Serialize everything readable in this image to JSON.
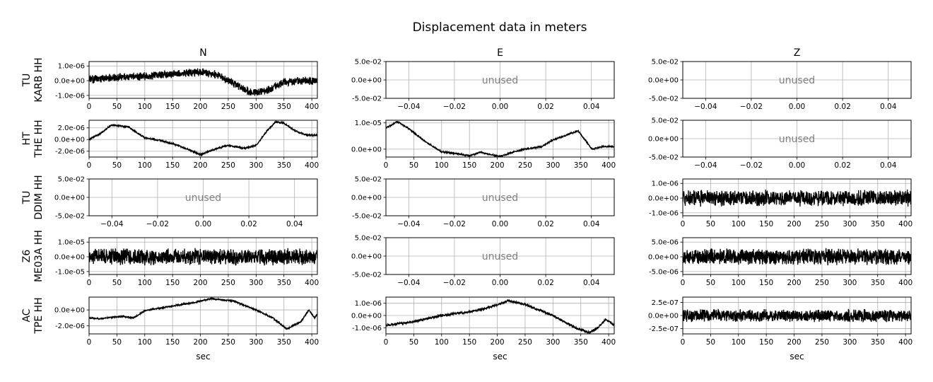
{
  "chart_data": {
    "type": "line",
    "title": "Displacement data in meters",
    "column_titles": [
      "N",
      "E",
      "Z"
    ],
    "xlabel": "sec",
    "unused_label": "unused",
    "line_color": "#000000",
    "grid": true,
    "rows": [
      {
        "label_line1": "TU",
        "label_line2": "KARB HH",
        "panels": [
          {
            "used": true,
            "xlim": [
              0,
              410
            ],
            "ylim": [
              -1.2e-06,
              1.3e-06
            ],
            "yticks": [
              -1e-06,
              0,
              1e-06
            ],
            "ytick_labels": [
              "-1.0e-06",
              "0.0e+00",
              "1.0e-06"
            ],
            "anchors": [
              [
                0,
                5e-08
              ],
              [
                50,
                2.5e-07
              ],
              [
                100,
                3e-07
              ],
              [
                150,
                4.5e-07
              ],
              [
                200,
                6e-07
              ],
              [
                230,
                4e-07
              ],
              [
                260,
                -2e-07
              ],
              [
                290,
                -8e-07
              ],
              [
                320,
                -7e-07
              ],
              [
                350,
                -1e-07
              ],
              [
                410,
                0
              ]
            ],
            "noise": 3e-07,
            "seed": 11
          },
          {
            "used": false,
            "xlim": [
              -0.05,
              0.05
            ],
            "ylim": [
              -0.05,
              0.05
            ],
            "yticks": [
              -0.05,
              0,
              0.05
            ],
            "ytick_labels": [
              "-5.0e-02",
              "0.0e+00",
              "5.0e-02"
            ]
          },
          {
            "used": false,
            "xlim": [
              -0.05,
              0.05
            ],
            "ylim": [
              -0.05,
              0.05
            ],
            "yticks": [
              -0.05,
              0,
              0.05
            ],
            "ytick_labels": [
              "-5.0e-02",
              "0.0e+00",
              "5.0e-02"
            ]
          }
        ]
      },
      {
        "label_line1": "HT",
        "label_line2": "THE HH",
        "panels": [
          {
            "used": true,
            "xlim": [
              0,
              410
            ],
            "ylim": [
              -3e-06,
              3.3e-06
            ],
            "yticks": [
              -2e-06,
              0,
              2e-06
            ],
            "ytick_labels": [
              "-2.0e-06",
              "0.0e+00",
              "2.0e-06"
            ],
            "anchors": [
              [
                0,
                0
              ],
              [
                20,
                1e-06
              ],
              [
                40,
                2.5e-06
              ],
              [
                70,
                2.2e-06
              ],
              [
                100,
                3e-07
              ],
              [
                130,
                -2e-07
              ],
              [
                160,
                -1e-06
              ],
              [
                180,
                -1.8e-06
              ],
              [
                200,
                -2.6e-06
              ],
              [
                230,
                -1.5e-06
              ],
              [
                250,
                -1e-06
              ],
              [
                280,
                -1.5e-06
              ],
              [
                300,
                -1e-06
              ],
              [
                320,
                1.5e-06
              ],
              [
                335,
                3e-06
              ],
              [
                350,
                2.8e-06
              ],
              [
                370,
                1.5e-06
              ],
              [
                390,
                8e-07
              ],
              [
                410,
                7e-07
              ]
            ],
            "noise": 1.5e-07,
            "seed": 21
          },
          {
            "used": true,
            "xlim": [
              0,
              410
            ],
            "ylim": [
              -3e-06,
              1.1e-05
            ],
            "yticks": [
              0,
              1e-05
            ],
            "ytick_labels": [
              "0.0e+00",
              "1.0e-05"
            ],
            "anchors": [
              [
                0,
                8e-06
              ],
              [
                20,
                1.05e-05
              ],
              [
                40,
                8e-06
              ],
              [
                70,
                3e-06
              ],
              [
                100,
                -1e-06
              ],
              [
                120,
                -1.5e-06
              ],
              [
                150,
                -2.5e-06
              ],
              [
                170,
                -1.2e-06
              ],
              [
                205,
                -2.8e-06
              ],
              [
                230,
                -1e-06
              ],
              [
                250,
                0
              ],
              [
                280,
                1e-06
              ],
              [
                300,
                3.5e-06
              ],
              [
                320,
                5e-06
              ],
              [
                345,
                7e-06
              ],
              [
                370,
                0
              ],
              [
                390,
                1e-06
              ],
              [
                410,
                1e-06
              ]
            ],
            "noise": 3e-07,
            "seed": 22
          },
          {
            "used": false,
            "xlim": [
              -0.05,
              0.05
            ],
            "ylim": [
              -0.05,
              0.05
            ],
            "yticks": [
              -0.05,
              0,
              0.05
            ],
            "ytick_labels": [
              "-5.0e-02",
              "0.0e+00",
              "5.0e-02"
            ]
          }
        ]
      },
      {
        "label_line1": "TU",
        "label_line2": "DDIM HH",
        "panels": [
          {
            "used": false,
            "xlim": [
              -0.05,
              0.05
            ],
            "ylim": [
              -0.05,
              0.05
            ],
            "yticks": [
              -0.05,
              0,
              0.05
            ],
            "ytick_labels": [
              "-5.0e-02",
              "0.0e+00",
              "5.0e-02"
            ]
          },
          {
            "used": false,
            "xlim": [
              -0.05,
              0.05
            ],
            "ylim": [
              -0.05,
              0.05
            ],
            "yticks": [
              -0.05,
              0,
              0.05
            ],
            "ytick_labels": [
              "-5.0e-02",
              "0.0e+00",
              "5.0e-02"
            ]
          },
          {
            "used": true,
            "xlim": [
              0,
              410
            ],
            "ylim": [
              -1.2e-06,
              1.3e-06
            ],
            "yticks": [
              -1e-06,
              0,
              1e-06
            ],
            "ytick_labels": [
              "-1.0e-06",
              "0.0e+00",
              "1.0e-06"
            ],
            "anchors": [
              [
                0,
                0
              ],
              [
                410,
                0
              ]
            ],
            "noise": 6e-07,
            "seed": 33
          }
        ]
      },
      {
        "label_line1": "Z6",
        "label_line2": "ME03A HH",
        "panels": [
          {
            "used": true,
            "xlim": [
              0,
              410
            ],
            "ylim": [
              -1.2e-05,
              1.3e-05
            ],
            "yticks": [
              -1e-05,
              0,
              1e-05
            ],
            "ytick_labels": [
              "-1.0e-05",
              "0.0e+00",
              "1.0e-05"
            ],
            "anchors": [
              [
                0,
                0
              ],
              [
                410,
                0
              ]
            ],
            "noise": 6e-06,
            "seed": 41
          },
          {
            "used": false,
            "xlim": [
              -0.05,
              0.05
            ],
            "ylim": [
              -0.05,
              0.05
            ],
            "yticks": [
              -0.05,
              0,
              0.05
            ],
            "ytick_labels": [
              "-5.0e-02",
              "0.0e+00",
              "5.0e-02"
            ]
          },
          {
            "used": true,
            "xlim": [
              0,
              410
            ],
            "ylim": [
              -6e-06,
              6.5e-06
            ],
            "yticks": [
              -5e-06,
              0,
              5e-06
            ],
            "ytick_labels": [
              "-5.0e-06",
              "0.0e+00",
              "5.0e-06"
            ],
            "anchors": [
              [
                0,
                0
              ],
              [
                410,
                0
              ]
            ],
            "noise": 3e-06,
            "seed": 43
          }
        ]
      },
      {
        "label_line1": "AC",
        "label_line2": "TPE HH",
        "panels": [
          {
            "used": true,
            "xlim": [
              0,
              410
            ],
            "ylim": [
              -3e-06,
              1.6e-06
            ],
            "yticks": [
              -2e-06,
              0
            ],
            "ytick_labels": [
              "-2.0e-06",
              "0.0e+00"
            ],
            "anchors": [
              [
                0,
                -1e-06
              ],
              [
                20,
                -1.1e-06
              ],
              [
                60,
                -8e-07
              ],
              [
                80,
                -1e-06
              ],
              [
                100,
                -1e-07
              ],
              [
                150,
                5e-07
              ],
              [
                180,
                8e-07
              ],
              [
                220,
                1.4e-06
              ],
              [
                260,
                1.1e-06
              ],
              [
                300,
                0
              ],
              [
                330,
                -1e-06
              ],
              [
                355,
                -2.4e-06
              ],
              [
                380,
                -1.5e-06
              ],
              [
                395,
                0
              ],
              [
                405,
                -1e-06
              ],
              [
                410,
                -5e-07
              ]
            ],
            "noise": 1e-07,
            "seed": 51
          },
          {
            "used": true,
            "xlim": [
              0,
              410
            ],
            "ylim": [
              -1.5e-06,
              1.5e-06
            ],
            "yticks": [
              -1e-06,
              0,
              1e-06
            ],
            "ytick_labels": [
              "-1.0e-06",
              "0.0e+00",
              "1.0e-06"
            ],
            "anchors": [
              [
                0,
                -8e-07
              ],
              [
                50,
                -5e-07
              ],
              [
                100,
                0
              ],
              [
                150,
                3e-07
              ],
              [
                180,
                6e-07
              ],
              [
                220,
                1.2e-06
              ],
              [
                250,
                9e-07
              ],
              [
                300,
                0
              ],
              [
                340,
                -1e-06
              ],
              [
                365,
                -1.4e-06
              ],
              [
                380,
                -1e-06
              ],
              [
                395,
                -3e-07
              ],
              [
                410,
                -8e-07
              ]
            ],
            "noise": 1e-07,
            "seed": 52
          },
          {
            "used": true,
            "xlim": [
              0,
              410
            ],
            "ylim": [
              -3.5e-07,
              3.5e-07
            ],
            "yticks": [
              -2.5e-07,
              0,
              2.5e-07
            ],
            "ytick_labels": [
              "-2.5e-07",
              "0.0e+00",
              "2.5e-07"
            ],
            "anchors": [
              [
                0,
                0
              ],
              [
                410,
                0
              ]
            ],
            "noise": 1.3e-07,
            "seed": 53
          }
        ]
      }
    ],
    "time_ticks": [
      0,
      50,
      100,
      150,
      200,
      250,
      300,
      350,
      400
    ],
    "unused_xticks": [
      -0.04,
      -0.02,
      0,
      0.02,
      0.04
    ],
    "unused_xtick_labels": [
      "−0.04",
      "−0.02",
      "0.00",
      "0.02",
      "0.04"
    ]
  }
}
